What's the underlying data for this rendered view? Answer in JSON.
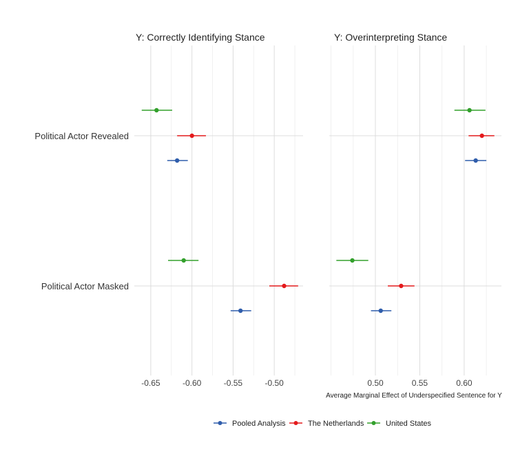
{
  "chart_data": {
    "type": "dot-and-whisker",
    "categories": [
      "Political Actor Revealed",
      "Political Actor Masked"
    ],
    "xlabel": "Average Marginal Effect of Underspecified Sentence for Y",
    "legend": {
      "position": "bottom",
      "entries": [
        "Pooled Analysis",
        "The Netherlands",
        "United States"
      ]
    },
    "series_colors": {
      "Pooled Analysis": "#2F5DAB",
      "The Netherlands": "#E41A1C",
      "United States": "#33A02C"
    },
    "panels": [
      {
        "title": "Y: Correctly Identifying Stance",
        "xlim": [
          -0.67,
          -0.465
        ],
        "xticks": [
          -0.65,
          -0.6,
          -0.55,
          -0.5
        ],
        "xtick_labels": [
          "-0.65",
          "-0.60",
          "-0.55",
          "-0.50"
        ],
        "grid": true,
        "series": [
          {
            "name": "Pooled Analysis",
            "values": [
              {
                "category": "Political Actor Revealed",
                "estimate": -0.618,
                "lower": -0.63,
                "upper": -0.605
              },
              {
                "category": "Political Actor Masked",
                "estimate": -0.541,
                "lower": -0.553,
                "upper": -0.528
              }
            ]
          },
          {
            "name": "The Netherlands",
            "values": [
              {
                "category": "Political Actor Revealed",
                "estimate": -0.6,
                "lower": -0.618,
                "upper": -0.583
              },
              {
                "category": "Political Actor Masked",
                "estimate": -0.488,
                "lower": -0.506,
                "upper": -0.471
              }
            ]
          },
          {
            "name": "United States",
            "values": [
              {
                "category": "Political Actor Revealed",
                "estimate": -0.643,
                "lower": -0.661,
                "upper": -0.624
              },
              {
                "category": "Political Actor Masked",
                "estimate": -0.61,
                "lower": -0.629,
                "upper": -0.592
              }
            ]
          }
        ]
      },
      {
        "title": "Y: Overinterpreting Stance",
        "xlim": [
          0.448,
          0.642
        ],
        "xticks": [
          0.5,
          0.55,
          0.6
        ],
        "xtick_labels": [
          "0.50",
          "0.55",
          "0.60"
        ],
        "grid": true,
        "series": [
          {
            "name": "Pooled Analysis",
            "values": [
              {
                "category": "Political Actor Revealed",
                "estimate": 0.613,
                "lower": 0.601,
                "upper": 0.625
              },
              {
                "category": "Political Actor Masked",
                "estimate": 0.506,
                "lower": 0.495,
                "upper": 0.518
              }
            ]
          },
          {
            "name": "The Netherlands",
            "values": [
              {
                "category": "Political Actor Revealed",
                "estimate": 0.62,
                "lower": 0.605,
                "upper": 0.634
              },
              {
                "category": "Political Actor Masked",
                "estimate": 0.529,
                "lower": 0.514,
                "upper": 0.544
              }
            ]
          },
          {
            "name": "United States",
            "values": [
              {
                "category": "Political Actor Revealed",
                "estimate": 0.606,
                "lower": 0.589,
                "upper": 0.624
              },
              {
                "category": "Political Actor Masked",
                "estimate": 0.474,
                "lower": 0.456,
                "upper": 0.492
              }
            ]
          }
        ]
      }
    ]
  }
}
